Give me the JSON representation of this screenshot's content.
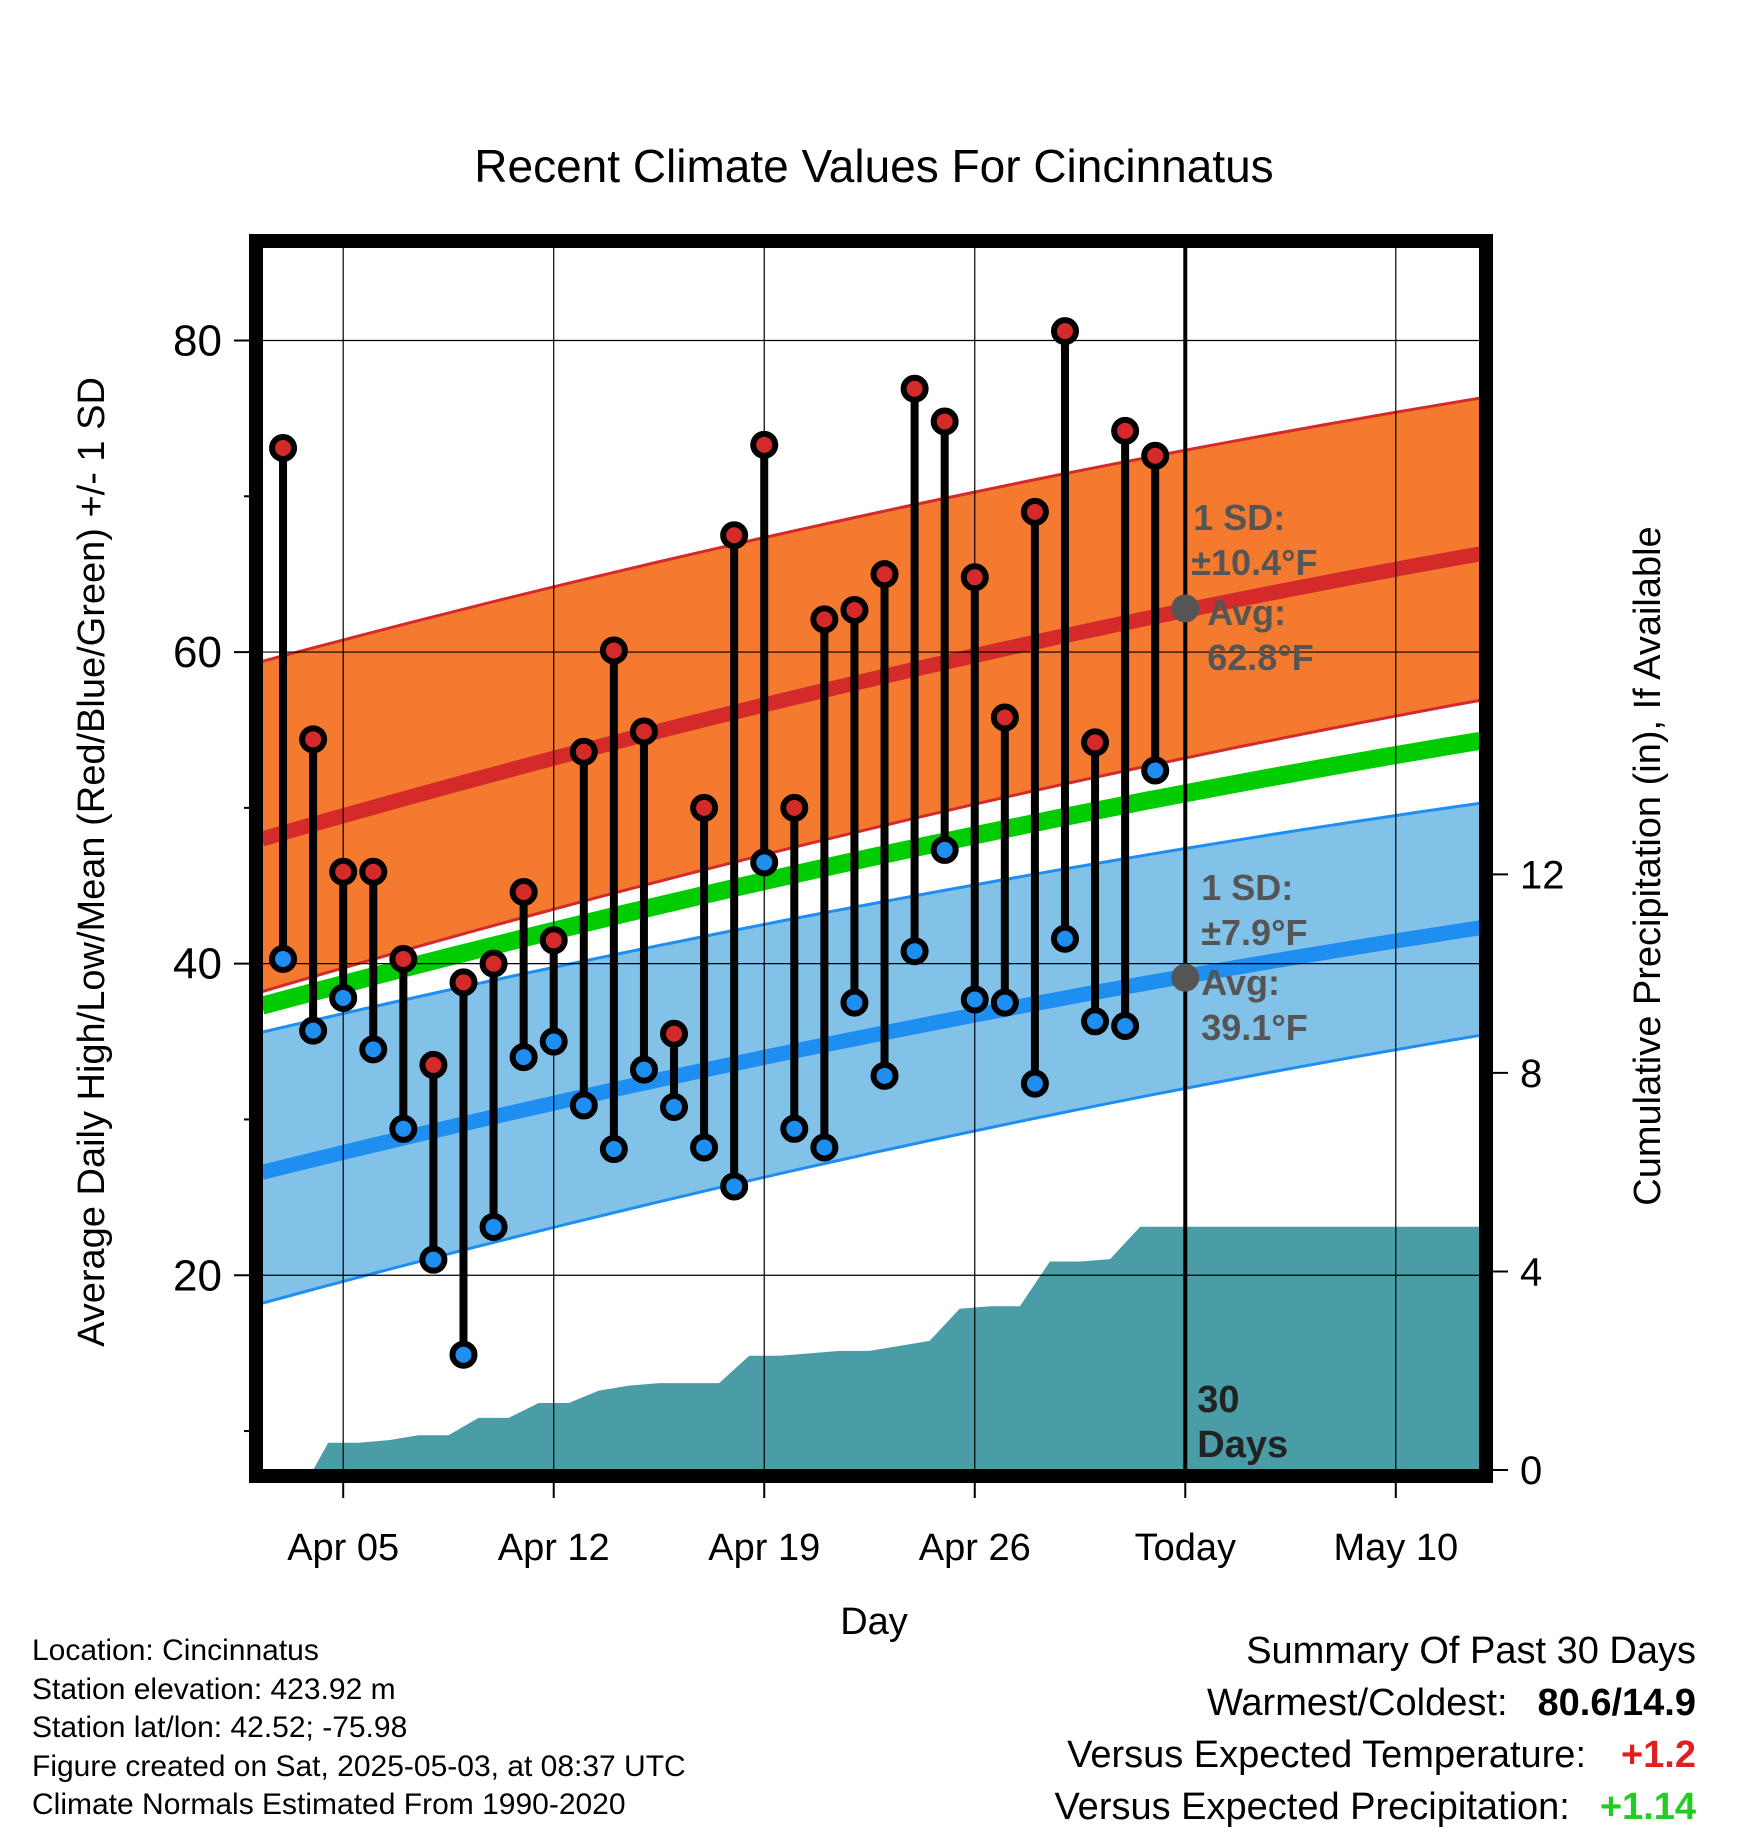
{
  "chart_data": {
    "type": "line",
    "title": "Recent Climate Values For Cincinnatus",
    "xlabel": "Day",
    "ylabel": "Average Daily High/Low/Mean (Red/Blue/Green) +/- 1 SD",
    "y2label": "Cumulative Precipitation (in), If Available",
    "x_tick_labels": [
      "Apr 05",
      "Apr 12",
      "Apr 19",
      "Apr 26",
      "Today",
      "May 10"
    ],
    "x_tick_day_index": [
      3,
      10,
      17,
      24,
      31,
      38
    ],
    "x_range_day_index": [
      0.3,
      40.8
    ],
    "today_day_index": 31,
    "y_ticks": [
      20,
      40,
      60,
      80
    ],
    "ylim": [
      7.5,
      86
    ],
    "y2_ticks": [
      0,
      4,
      8,
      12
    ],
    "y2lim": [
      0,
      24.64
    ],
    "grid": true,
    "normals": {
      "high_avg": {
        "start": 48.0,
        "end": 66.3
      },
      "high_upper": {
        "start": 59.4,
        "end": 76.3
      },
      "high_lower": {
        "start": 38.2,
        "end": 56.9
      },
      "low_avg": {
        "start": 26.6,
        "end": 42.3
      },
      "low_upper": {
        "start": 35.6,
        "end": 50.3
      },
      "low_lower": {
        "start": 18.2,
        "end": 35.4
      },
      "mean_avg": {
        "start": 37.3,
        "end": 54.3
      }
    },
    "annotations": {
      "high_sd_line1": "1 SD:",
      "high_sd_line2": "±10.4°F",
      "high_avg_line1": "Avg:",
      "high_avg_line2": "62.8°F",
      "high_avg_value": 62.8,
      "low_sd_line1": "1 SD:",
      "low_sd_line2": "±7.9°F",
      "low_avg_line1": "Avg:",
      "low_avg_value": 39.1,
      "low_avg_line2": "39.1°F",
      "days_line1": "30",
      "days_line2": "Days"
    },
    "series": [
      {
        "name": "High",
        "color": "#d42a2a",
        "values": [
          73.1,
          54.4,
          45.9,
          45.9,
          40.3,
          33.5,
          38.8,
          40.0,
          44.6,
          41.5,
          53.6,
          60.1,
          54.9,
          35.5,
          50.0,
          67.5,
          73.3,
          50.0,
          62.1,
          62.7,
          65.0,
          76.9,
          74.8,
          64.8,
          55.8,
          69.0,
          80.6,
          54.2,
          74.2,
          72.6
        ]
      },
      {
        "name": "Low",
        "color": "#1e8ef0",
        "values": [
          40.3,
          35.7,
          37.8,
          34.5,
          29.4,
          21.0,
          14.9,
          23.1,
          34.0,
          35.0,
          30.9,
          28.1,
          33.2,
          30.8,
          28.2,
          25.7,
          46.5,
          29.4,
          28.2,
          37.5,
          32.8,
          40.8,
          47.3,
          37.7,
          37.5,
          32.3,
          41.6,
          36.3,
          36.0,
          52.4
        ]
      },
      {
        "name": "Cumulative Precipitation",
        "color": "#4a9ca6",
        "values": [
          0.0,
          0.0,
          0.55,
          0.55,
          0.6,
          0.7,
          0.7,
          1.05,
          1.05,
          1.35,
          1.35,
          1.6,
          1.7,
          1.75,
          1.75,
          1.75,
          2.3,
          2.3,
          2.35,
          2.4,
          2.4,
          2.5,
          2.6,
          3.25,
          3.3,
          3.3,
          4.2,
          4.2,
          4.25,
          4.9,
          4.9,
          4.9,
          4.9,
          4.9,
          4.9,
          4.9,
          4.9,
          4.9,
          4.9,
          4.9,
          4.9
        ]
      }
    ],
    "colors": {
      "high_band": "#f47a30",
      "high_line": "#d42a2a",
      "low_band": "#82c2e8",
      "low_line": "#1e8ef0",
      "mean_line": "#00cc00",
      "precip": "#4a9ca6",
      "annotation": "#555555"
    }
  },
  "footer": {
    "location": "Location: Cincinnatus",
    "elevation": "Station elevation: 423.92 m",
    "latlon": "Station lat/lon: 42.52; -75.98",
    "created": "Figure created on Sat, 2025-05-03, at 08:37 UTC",
    "normals": "Climate Normals Estimated From 1990-2020"
  },
  "summary": {
    "heading": "Summary Of Past 30 Days",
    "warmest_label": "Warmest/Coldest:",
    "warmest_value": "80.6/14.9",
    "temp_label": "Versus Expected Temperature:",
    "temp_value": "+1.2",
    "temp_color": "#e02020",
    "precip_label": "Versus Expected Precipitation:",
    "precip_value": "+1.14",
    "precip_color": "#22cc22"
  }
}
